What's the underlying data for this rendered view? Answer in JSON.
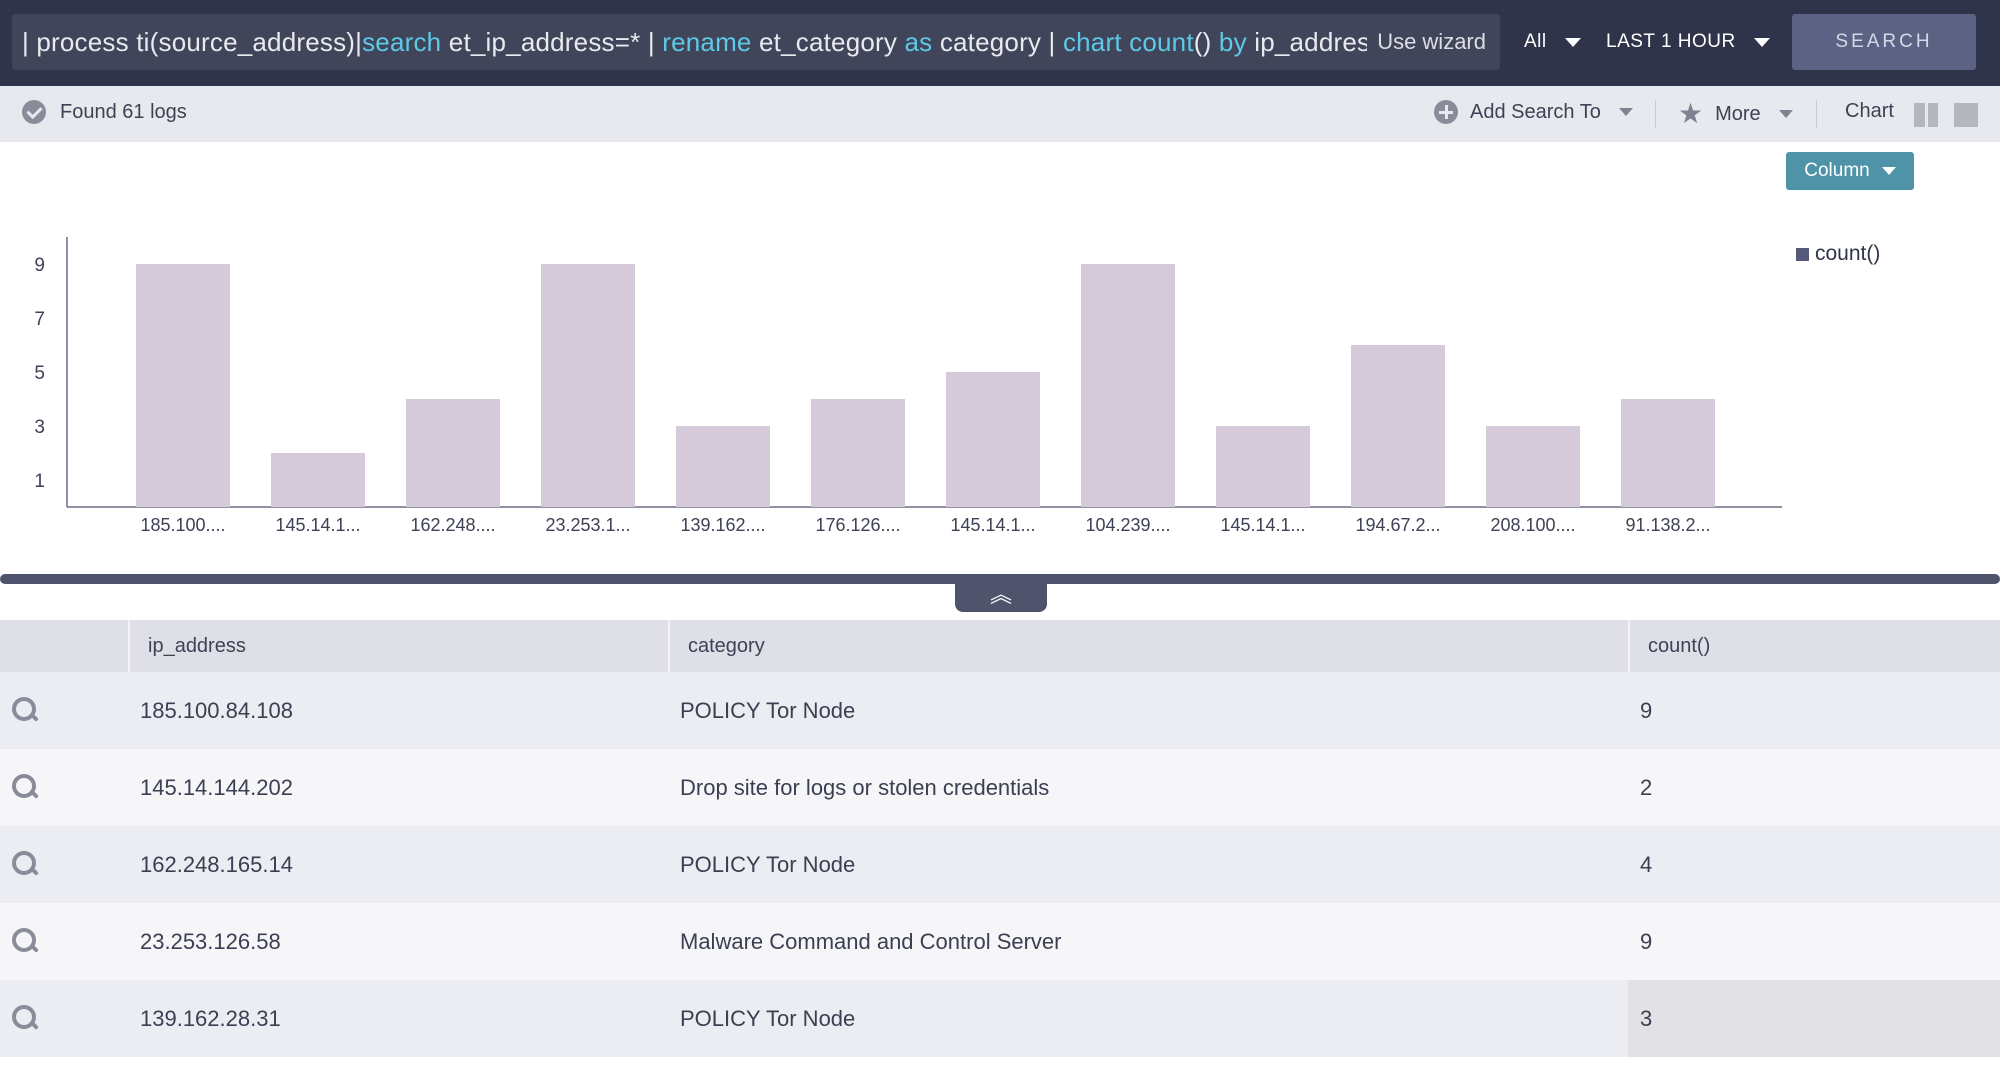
{
  "query": {
    "segments": [
      {
        "text": "| process ti(source_address)|",
        "kw": false
      },
      {
        "text": "search",
        "kw": true
      },
      {
        "text": " et_ip_address=* | ",
        "kw": false
      },
      {
        "text": "rename",
        "kw": true
      },
      {
        "text": " et_category ",
        "kw": false
      },
      {
        "text": "as",
        "kw": true
      },
      {
        "text": " category | ",
        "kw": false
      },
      {
        "text": "chart count",
        "kw": true
      },
      {
        "text": "() ",
        "kw": false
      },
      {
        "text": "by",
        "kw": true
      },
      {
        "text": " ip_address, category",
        "kw": false
      }
    ],
    "use_wizard": "Use wizard",
    "repo_selector": "All",
    "time_selector": "LAST 1 HOUR",
    "search_button": "SEARCH"
  },
  "colors": {
    "keyword": "#5ec9e6",
    "bar": "#d5cad9",
    "accent": "#4e93a8",
    "topbar": "#30344a"
  },
  "status": {
    "found": "Found 61 logs",
    "add_search_to": "Add Search To",
    "more": "More",
    "chart_label": "Chart"
  },
  "chart_controls": {
    "type_button": "Column"
  },
  "chart_data": {
    "type": "bar",
    "categories": [
      "185.100....",
      "145.14.1...",
      "162.248....",
      "23.253.1...",
      "139.162....",
      "176.126....",
      "145.14.1...",
      "104.239....",
      "145.14.1...",
      "194.67.2...",
      "208.100....",
      "91.138.2..."
    ],
    "series": [
      {
        "name": "count()",
        "values": [
          9,
          2,
          4,
          9,
          3,
          4,
          5,
          9,
          3,
          6,
          3,
          4
        ]
      }
    ],
    "yticks": [
      "1",
      "3",
      "5",
      "7",
      "9"
    ],
    "ylim": [
      0,
      10
    ],
    "legend": "right"
  },
  "table": {
    "columns": [
      "ip_address",
      "category",
      "count()"
    ],
    "rows": [
      {
        "ip": "185.100.84.108",
        "category": "POLICY Tor Node",
        "count": "9"
      },
      {
        "ip": "145.14.144.202",
        "category": "Drop site for logs or stolen credentials",
        "count": "2"
      },
      {
        "ip": "162.248.165.14",
        "category": "POLICY Tor Node",
        "count": "4"
      },
      {
        "ip": "23.253.126.58",
        "category": "Malware Command and Control Server",
        "count": "9"
      },
      {
        "ip": "139.162.28.31",
        "category": "POLICY Tor Node",
        "count": "3"
      }
    ]
  }
}
